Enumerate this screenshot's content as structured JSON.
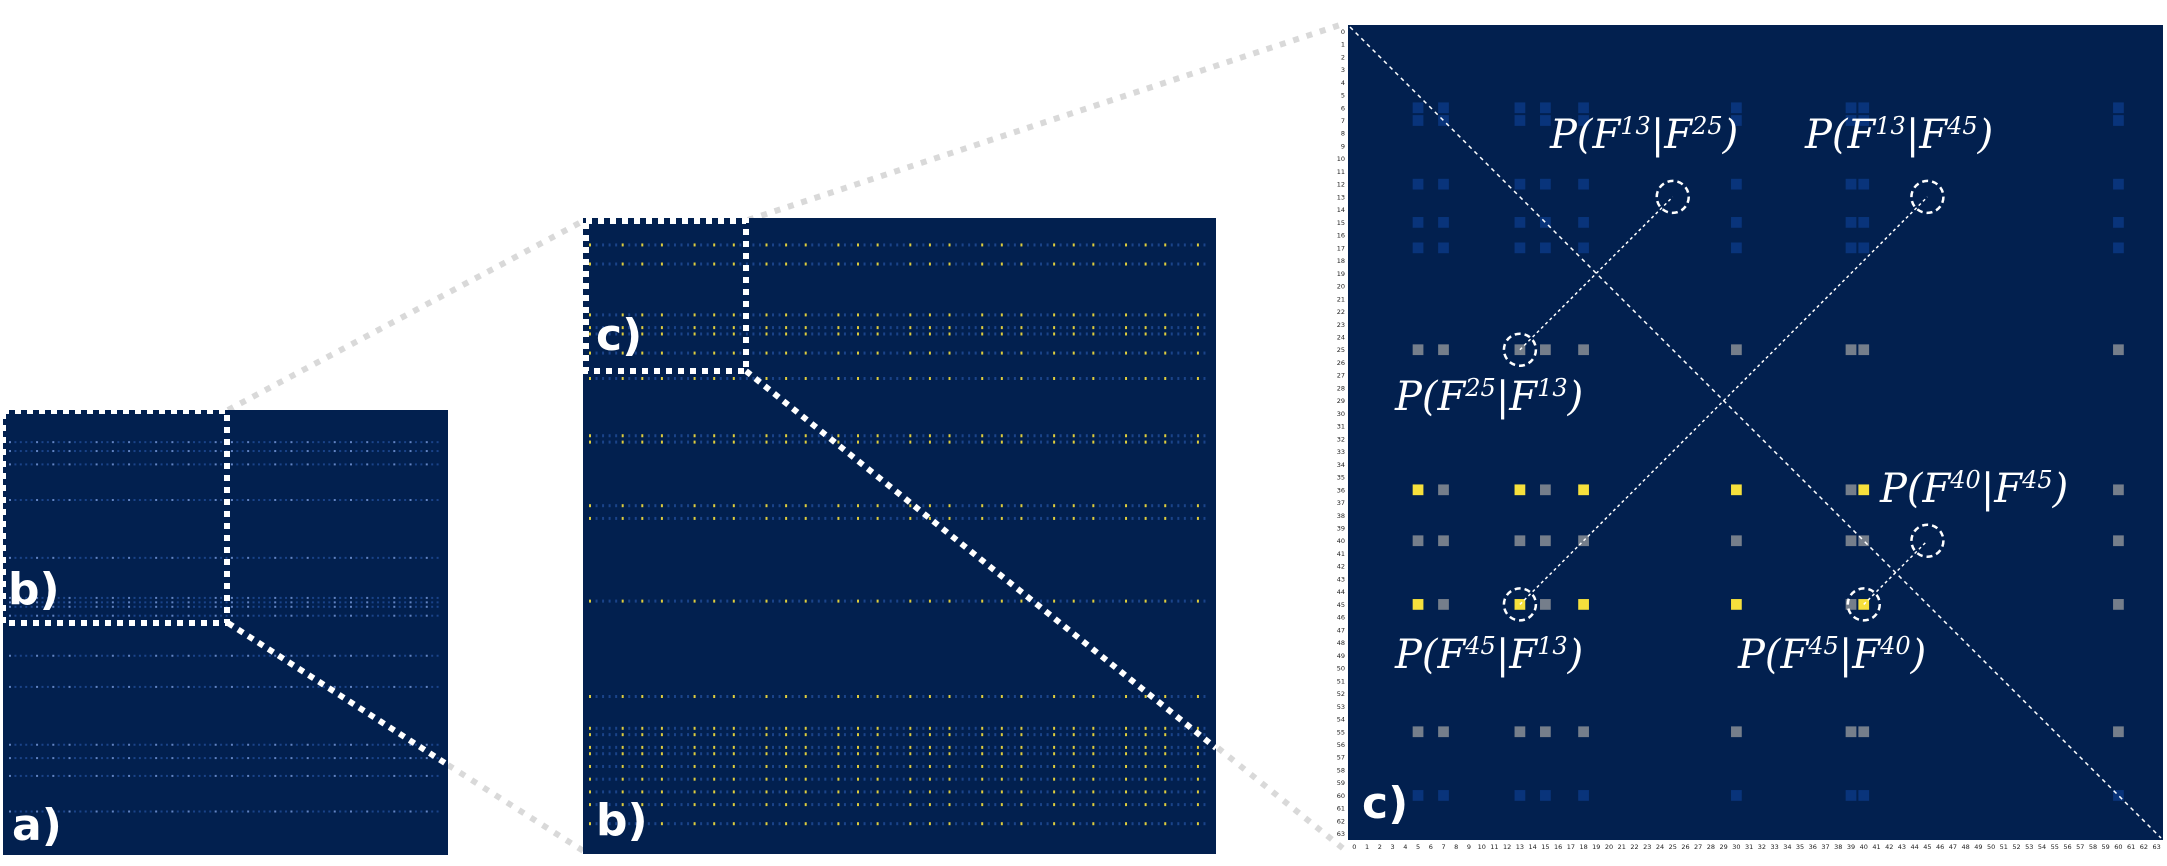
{
  "panels": {
    "a": {
      "label": "a)"
    },
    "b": {
      "label": "b)",
      "zoom_label": "b)"
    },
    "c": {
      "label": "c)",
      "zoom_label": "c)"
    }
  },
  "matrix": {
    "size": 64,
    "tick_labels": [
      "0",
      "1",
      "2",
      "3",
      "4",
      "5",
      "6",
      "7",
      "8",
      "9",
      "10",
      "11",
      "12",
      "13",
      "14",
      "15",
      "16",
      "17",
      "18",
      "19",
      "20",
      "21",
      "22",
      "23",
      "24",
      "25",
      "26",
      "27",
      "28",
      "29",
      "30",
      "31",
      "32",
      "33",
      "34",
      "35",
      "36",
      "37",
      "38",
      "39",
      "40",
      "41",
      "42",
      "43",
      "44",
      "45",
      "46",
      "47",
      "48",
      "49",
      "50",
      "51",
      "52",
      "53",
      "54",
      "55",
      "56",
      "57",
      "58",
      "59",
      "60",
      "61",
      "62",
      "63"
    ],
    "highlight_rows": [
      25,
      36,
      40,
      45,
      55
    ],
    "highlight_cols": [
      5,
      7,
      13,
      15,
      18,
      30,
      39,
      40,
      60
    ],
    "yellow_cells": [
      [
        36,
        5
      ],
      [
        36,
        13
      ],
      [
        36,
        18
      ],
      [
        36,
        30
      ],
      [
        36,
        40
      ],
      [
        45,
        5
      ],
      [
        45,
        13
      ],
      [
        45,
        18
      ],
      [
        45,
        30
      ],
      [
        45,
        40
      ]
    ]
  },
  "annotations": [
    {
      "id": "p13-25",
      "text": "P(F13|F25)",
      "prefix": "P(F",
      "a": "13",
      "b": "25",
      "cell": [
        13,
        25
      ]
    },
    {
      "id": "p13-45",
      "text": "P(F13|F45)",
      "prefix": "P(F",
      "a": "13",
      "b": "45",
      "cell": [
        13,
        45
      ]
    },
    {
      "id": "p25-13",
      "text": "P(F25|F13)",
      "prefix": "P(F",
      "a": "25",
      "b": "13",
      "cell": [
        25,
        13
      ]
    },
    {
      "id": "p40-45",
      "text": "P(F40|F45)",
      "prefix": "P(F",
      "a": "40",
      "b": "45",
      "cell": [
        40,
        45
      ]
    },
    {
      "id": "p45-13",
      "text": "P(F45|F13)",
      "prefix": "P(F",
      "a": "45",
      "b": "13",
      "cell": [
        45,
        13
      ]
    },
    {
      "id": "p45-40",
      "text": "P(F45|F40)",
      "prefix": "P(F",
      "a": "45",
      "b": "40",
      "cell": [
        45,
        40
      ]
    }
  ],
  "colors": {
    "background": "#02204f",
    "yellow": "#f6e03c",
    "gray": "#8a8f95",
    "blue_faint": "#0b3a86",
    "connector": "#d9d9d9",
    "dotted_box": "#ffffff"
  }
}
